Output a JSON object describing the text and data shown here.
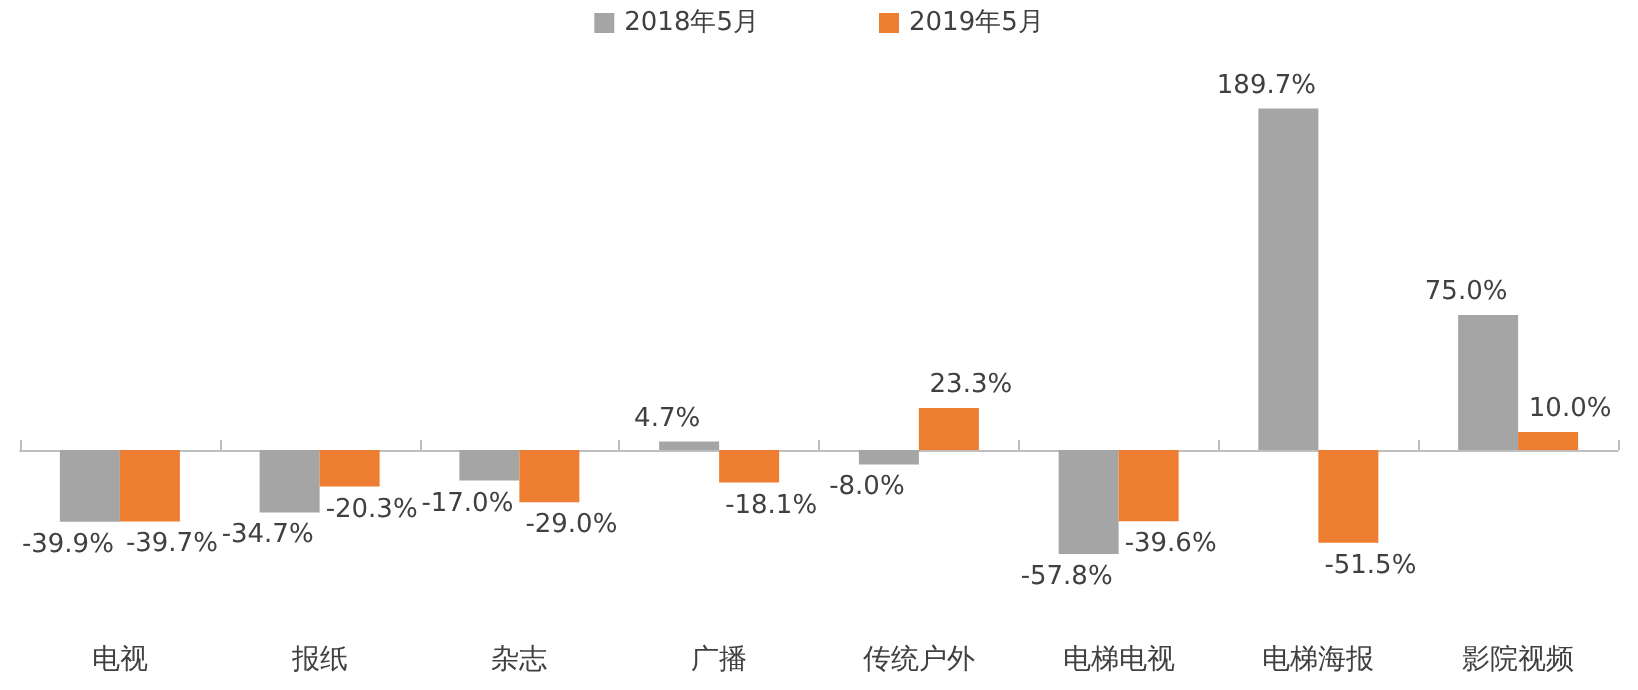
{
  "chart_data": {
    "type": "bar",
    "categories": [
      "电视",
      "报纸",
      "杂志",
      "广播",
      "传统户外",
      "电梯电视",
      "电梯海报",
      "影院视频"
    ],
    "series": [
      {
        "name": "2018年5月",
        "color": "#a5a5a5",
        "values": [
          -39.9,
          -34.7,
          -17.0,
          4.7,
          -8.0,
          -57.8,
          189.7,
          75.0
        ],
        "value_labels": [
          "-39.9%",
          "-34.7%",
          "-17.0%",
          "4.7%",
          "-8.0%",
          "-57.8%",
          "189.7%",
          "75.0%"
        ]
      },
      {
        "name": "2019年5月",
        "color": "#ed7d31",
        "values": [
          -39.7,
          -20.3,
          -29.0,
          -18.1,
          23.3,
          -39.6,
          -51.5,
          10.0
        ],
        "value_labels": [
          "-39.7%",
          "-20.3%",
          "-29.0%",
          "-18.1%",
          "23.3%",
          "-39.6%",
          "-51.5%",
          "10.0%"
        ]
      }
    ],
    "legend": "top"
  }
}
